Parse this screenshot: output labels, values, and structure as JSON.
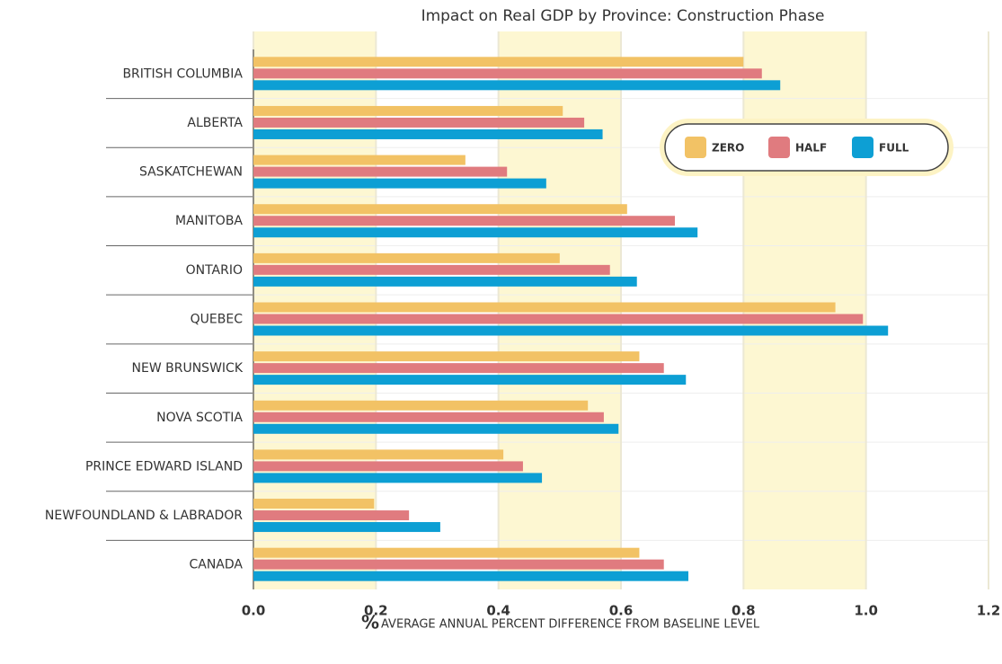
{
  "chart_data": {
    "type": "hbar",
    "title": "Impact on Real GDP by Province: Construction Phase",
    "x_label_unit": "%",
    "x_label": "AVERAGE ANNUAL PERCENT DIFFERENCE FROM BASELINE LEVEL",
    "categories": [
      "BRITISH COLUMBIA",
      "ALBERTA",
      "SASKATCHEWAN",
      "MANITOBA",
      "ONTARIO",
      "QUEBEC",
      "NEW BRUNSWICK",
      "NOVA SCOTIA",
      "PRINCE EDWARD ISLAND",
      "NEWFOUNDLAND & LABRADOR",
      "CANADA"
    ],
    "series": [
      {
        "name": "ZERO",
        "color": "#f2c265",
        "values": [
          0.8,
          0.505,
          0.346,
          0.61,
          0.5,
          0.95,
          0.63,
          0.546,
          0.408,
          0.197,
          0.63
        ]
      },
      {
        "name": "HALF",
        "color": "#e07b7f",
        "values": [
          0.83,
          0.54,
          0.414,
          0.688,
          0.582,
          0.995,
          0.67,
          0.572,
          0.44,
          0.254,
          0.67
        ]
      },
      {
        "name": "FULL",
        "color": "#0d9fd4",
        "values": [
          0.86,
          0.57,
          0.478,
          0.725,
          0.626,
          1.036,
          0.706,
          0.596,
          0.471,
          0.305,
          0.71
        ]
      }
    ],
    "xlim": [
      0,
      1.2
    ],
    "xticks": [
      {
        "value": 0,
        "label": "0.0"
      },
      0.2,
      0.4,
      0.6,
      0.8,
      {
        "value": 1,
        "label": "1.0"
      },
      1.2
    ],
    "grid": true,
    "shade_alternate": true,
    "legend": "top-right"
  }
}
